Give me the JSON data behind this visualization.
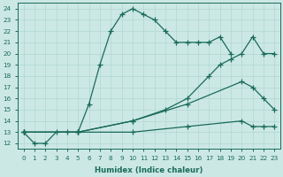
{
  "xlabel": "Humidex (Indice chaleur)",
  "bg_color": "#cce8e4",
  "grid_color": "#b0d8d0",
  "line_color": "#1a6b5a",
  "xlim": [
    -0.5,
    23.5
  ],
  "ylim": [
    11.5,
    24.5
  ],
  "xticks": [
    0,
    1,
    2,
    3,
    4,
    5,
    6,
    7,
    8,
    9,
    10,
    11,
    12,
    13,
    14,
    15,
    16,
    17,
    18,
    19,
    20,
    21,
    22,
    23
  ],
  "yticks": [
    12,
    13,
    14,
    15,
    16,
    17,
    18,
    19,
    20,
    21,
    22,
    23,
    24
  ],
  "lines": [
    {
      "x": [
        0,
        1,
        2,
        3,
        4,
        5,
        6,
        7,
        8,
        9,
        10,
        11,
        12,
        13,
        14,
        15,
        16,
        17,
        18,
        19
      ],
      "y": [
        13,
        12,
        12,
        13,
        13,
        13,
        15.5,
        19,
        22,
        23.5,
        24,
        23.5,
        23,
        22,
        21,
        21,
        21,
        21,
        21.5,
        20
      ]
    },
    {
      "x": [
        0,
        5,
        10,
        13,
        15,
        17,
        18,
        19,
        20,
        21,
        22,
        23
      ],
      "y": [
        13,
        13,
        14,
        15,
        16,
        18,
        19,
        19.5,
        20,
        21.5,
        20,
        20
      ]
    },
    {
      "x": [
        0,
        5,
        10,
        15,
        20,
        21,
        22,
        23
      ],
      "y": [
        13,
        13,
        14,
        15.5,
        17.5,
        17,
        16,
        15
      ]
    },
    {
      "x": [
        0,
        5,
        10,
        15,
        20,
        21,
        22,
        23
      ],
      "y": [
        13,
        13,
        13,
        13.5,
        14,
        13.5,
        13.5,
        13.5
      ]
    }
  ]
}
